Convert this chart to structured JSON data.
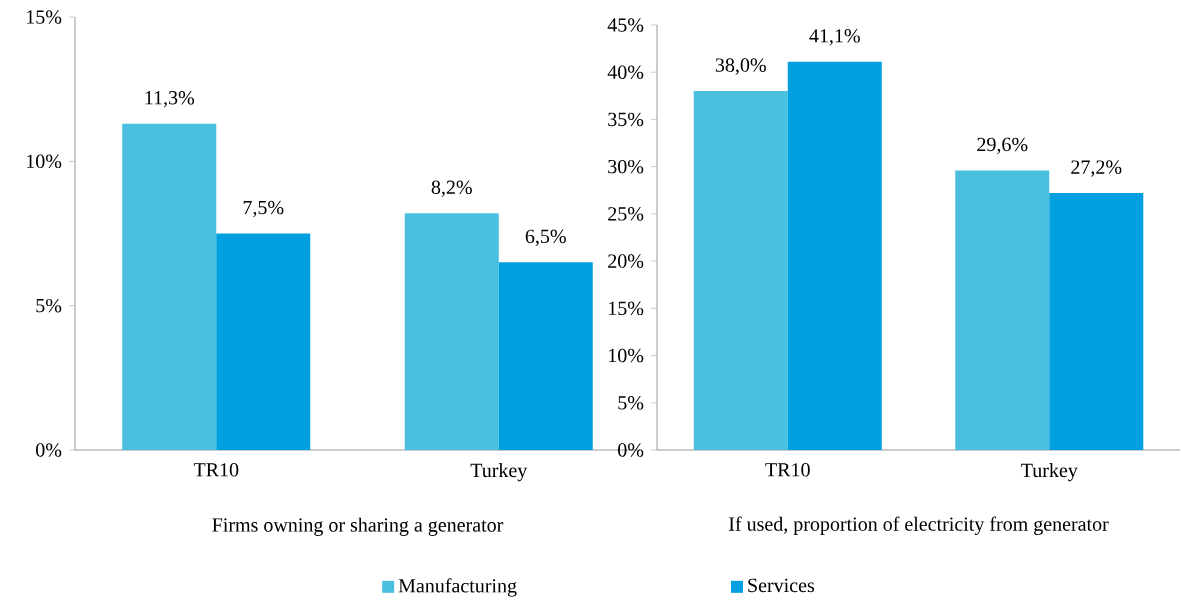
{
  "chart_data": [
    {
      "type": "bar",
      "xlabel": "Firms owning or sharing a generator",
      "categories": [
        "TR10",
        "Turkey"
      ],
      "series": [
        {
          "name": "Manufacturing",
          "color": "#4bbfe0",
          "values": [
            11.3,
            8.2
          ],
          "value_labels": [
            "11,3%",
            "8,2%"
          ]
        },
        {
          "name": "Services",
          "color": "#009fe0",
          "values": [
            7.5,
            6.5
          ],
          "value_labels": [
            "7,5%",
            "6,5%"
          ]
        }
      ],
      "ylim": [
        0,
        15
      ],
      "yticks": [
        {
          "value": 0,
          "label": "0%"
        },
        {
          "value": 5,
          "label": "5%"
        },
        {
          "value": 10,
          "label": "10%"
        },
        {
          "value": 15,
          "label": "15%"
        }
      ],
      "grid": false,
      "legend": "bottom"
    },
    {
      "type": "bar",
      "xlabel": "If used, proportion of electricity from generator",
      "categories": [
        "TR10",
        "Turkey"
      ],
      "series": [
        {
          "color": "#4bbfe0",
          "values": [
            38.0,
            29.6
          ],
          "value_labels": [
            "38,0%",
            "29,6%"
          ]
        },
        {
          "color": "#009fe0",
          "values": [
            41.1,
            27.2
          ],
          "value_labels": [
            "41,1%",
            "27,2%"
          ]
        }
      ],
      "ylim": [
        0,
        45
      ],
      "yticks": [
        {
          "value": 0,
          "label": "0%"
        },
        {
          "value": 5,
          "label": "5%"
        },
        {
          "value": 10,
          "label": "10%"
        },
        {
          "value": 15,
          "label": "15%"
        },
        {
          "value": 20,
          "label": "20%"
        },
        {
          "value": 25,
          "label": "25%"
        },
        {
          "value": 30,
          "label": "30%"
        },
        {
          "value": 35,
          "label": "35%"
        },
        {
          "value": 40,
          "label": "40%"
        },
        {
          "value": 45,
          "label": "45%"
        }
      ],
      "grid": false
    }
  ]
}
